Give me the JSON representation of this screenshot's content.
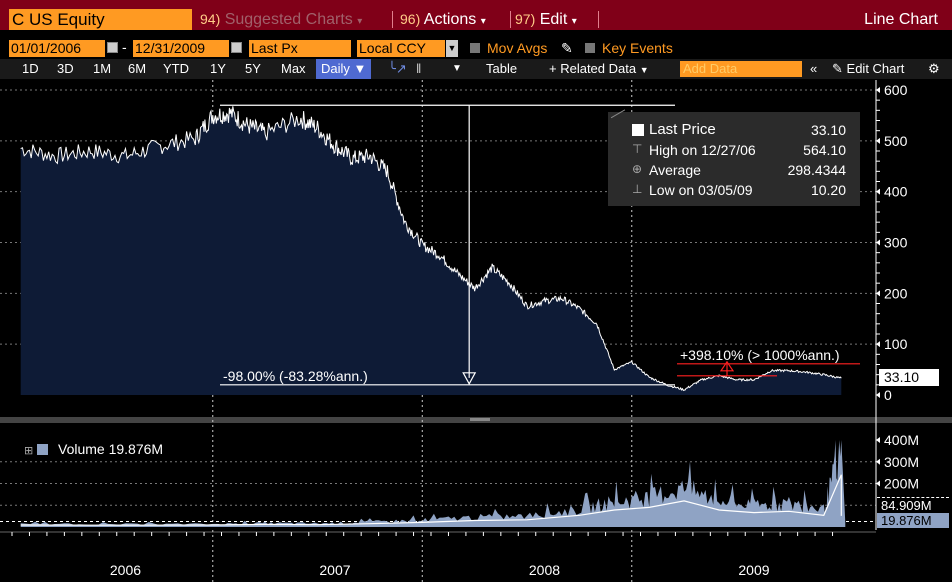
{
  "header": {
    "ticker": "C US Equity",
    "suggested_num": "94)",
    "suggested_label": "Suggested Charts",
    "actions_num": "96)",
    "actions_label": "Actions",
    "edit_num": "97)",
    "edit_label": "Edit",
    "chart_type": "Line Chart"
  },
  "controls": {
    "start_date": "01/01/2006",
    "end_date": "12/31/2009",
    "field": "Last Px",
    "currency": "Local CCY",
    "mov_avgs": "Mov Avgs",
    "key_events": "Key Events"
  },
  "toolbar": {
    "periods": [
      "1D",
      "3D",
      "1M",
      "6M",
      "YTD",
      "1Y",
      "5Y",
      "Max"
    ],
    "frequency": "Daily",
    "table": "Table",
    "related": "+ Related Data",
    "add_data_placeholder": "Add Data",
    "edit_chart": "Edit Chart"
  },
  "legend": {
    "last_price_label": "Last Price",
    "last_price_value": "33.10",
    "high_label": "High on 12/27/06",
    "high_value": "564.10",
    "average_label": "Average",
    "average_value": "298.4344",
    "low_label": "Low on 03/05/09",
    "low_value": "10.20"
  },
  "annotations": {
    "decline": "-98.00% (-83.28%ann.)",
    "rise": "+398.10% (> 1000%ann.)"
  },
  "volume_panel": {
    "label": "Volume",
    "value": "19.876M",
    "tag_avg": "84.909M",
    "tag_last": "19.876M"
  },
  "price_tag": "33.10",
  "chart_data": {
    "type": "area",
    "x_labels": [
      "2006",
      "2007",
      "2008",
      "2009"
    ],
    "ylim": [
      0,
      600
    ],
    "y_ticks": [
      "600",
      "500",
      "400",
      "300",
      "200",
      "100",
      "0"
    ],
    "vol_ticks": [
      "400M",
      "300M",
      "200M"
    ],
    "price_series": [
      {
        "x": "2006-01",
        "y": 485
      },
      {
        "x": "2006-03",
        "y": 470
      },
      {
        "x": "2006-05",
        "y": 480
      },
      {
        "x": "2006-07",
        "y": 470
      },
      {
        "x": "2006-09",
        "y": 490
      },
      {
        "x": "2006-11",
        "y": 505
      },
      {
        "x": "2006-12",
        "y": 550
      },
      {
        "x": "2007-01",
        "y": 555
      },
      {
        "x": "2007-02",
        "y": 530
      },
      {
        "x": "2007-03",
        "y": 515
      },
      {
        "x": "2007-05",
        "y": 545
      },
      {
        "x": "2007-06",
        "y": 525
      },
      {
        "x": "2007-07",
        "y": 490
      },
      {
        "x": "2007-08",
        "y": 465
      },
      {
        "x": "2007-09",
        "y": 470
      },
      {
        "x": "2007-10",
        "y": 440
      },
      {
        "x": "2007-11",
        "y": 340
      },
      {
        "x": "2007-12",
        "y": 295
      },
      {
        "x": "2008-01",
        "y": 275
      },
      {
        "x": "2008-02",
        "y": 240
      },
      {
        "x": "2008-03",
        "y": 210
      },
      {
        "x": "2008-04",
        "y": 250
      },
      {
        "x": "2008-05",
        "y": 220
      },
      {
        "x": "2008-06",
        "y": 175
      },
      {
        "x": "2008-07",
        "y": 185
      },
      {
        "x": "2008-08",
        "y": 190
      },
      {
        "x": "2008-09",
        "y": 170
      },
      {
        "x": "2008-10",
        "y": 140
      },
      {
        "x": "2008-11",
        "y": 50
      },
      {
        "x": "2008-12",
        "y": 65
      },
      {
        "x": "2009-01",
        "y": 35
      },
      {
        "x": "2009-02",
        "y": 20
      },
      {
        "x": "2009-03",
        "y": 10.2
      },
      {
        "x": "2009-04",
        "y": 30
      },
      {
        "x": "2009-05",
        "y": 38
      },
      {
        "x": "2009-06",
        "y": 30
      },
      {
        "x": "2009-07",
        "y": 30
      },
      {
        "x": "2009-08",
        "y": 48
      },
      {
        "x": "2009-09",
        "y": 48
      },
      {
        "x": "2009-10",
        "y": 45
      },
      {
        "x": "2009-11",
        "y": 40
      },
      {
        "x": "2009-12",
        "y": 33.1
      }
    ],
    "volume_series": [
      {
        "x": "2006-01",
        "y": 15
      },
      {
        "x": "2006-06",
        "y": 14
      },
      {
        "x": "2006-12",
        "y": 15
      },
      {
        "x": "2007-03",
        "y": 20
      },
      {
        "x": "2007-06",
        "y": 18
      },
      {
        "x": "2007-09",
        "y": 25
      },
      {
        "x": "2007-12",
        "y": 35
      },
      {
        "x": "2008-03",
        "y": 50
      },
      {
        "x": "2008-06",
        "y": 55
      },
      {
        "x": "2008-09",
        "y": 90
      },
      {
        "x": "2008-11",
        "y": 130
      },
      {
        "x": "2009-01",
        "y": 150
      },
      {
        "x": "2009-03",
        "y": 200
      },
      {
        "x": "2009-05",
        "y": 130
      },
      {
        "x": "2009-07",
        "y": 110
      },
      {
        "x": "2009-09",
        "y": 120
      },
      {
        "x": "2009-11",
        "y": 90
      },
      {
        "x": "2009-12",
        "y": 400
      },
      {
        "x": "2009-12",
        "y": 19.876
      }
    ],
    "volume_avg": 84.909
  },
  "colors": {
    "fill": "#0e1b36",
    "line": "#ffffff",
    "volume": "#8fa3c4",
    "annotation_red": "#ff2020"
  }
}
